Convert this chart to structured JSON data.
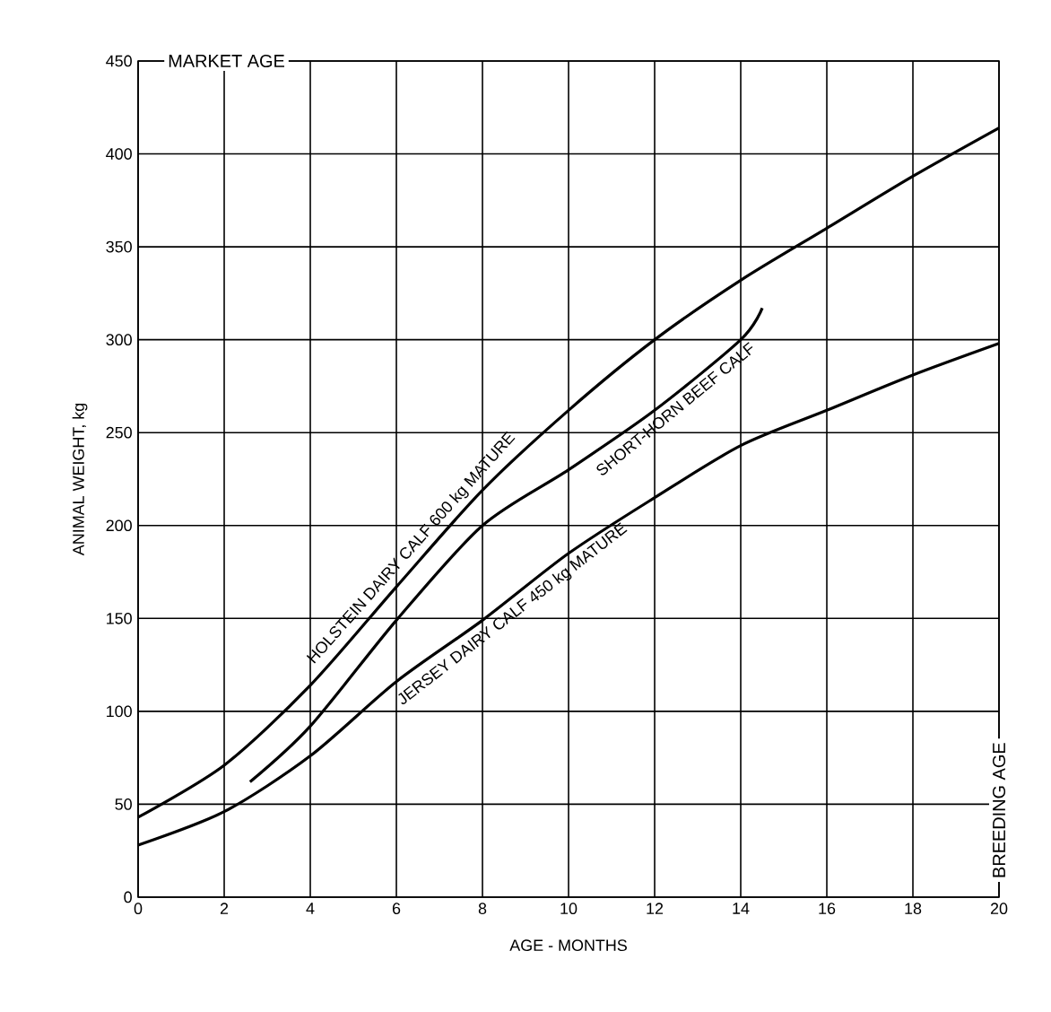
{
  "chart_data": {
    "type": "line",
    "xlabel": "AGE - MONTHS",
    "ylabel": "ANIMAL WEIGHT, kg",
    "xlim": [
      0,
      20
    ],
    "ylim": [
      0,
      450
    ],
    "xticks": [
      0,
      2,
      4,
      6,
      8,
      10,
      12,
      14,
      16,
      18,
      20
    ],
    "yticks": [
      0,
      50,
      100,
      150,
      200,
      250,
      300,
      350,
      400,
      450
    ],
    "grid": true,
    "marker": "none",
    "line_style": "solid",
    "annotations": [
      "MARKET AGE",
      "BREEDING AGE"
    ],
    "series": [
      {
        "name": "HOLSTEIN DAIRY CALF 600 kg MATURE",
        "color": "#000000",
        "x": [
          0,
          2,
          4,
          6,
          8,
          10,
          12,
          14,
          16,
          18,
          20
        ],
        "values": [
          43,
          71,
          114,
          167,
          219,
          262,
          300,
          332,
          360,
          388,
          414
        ]
      },
      {
        "name": "SHORT-HORN BEEF CALF",
        "color": "#000000",
        "x": [
          2.6,
          4,
          6,
          8,
          10,
          12,
          14,
          14.5
        ],
        "values": [
          62,
          92,
          149,
          200,
          230,
          262,
          300,
          317
        ]
      },
      {
        "name": "JERSEY DAIRY CALF 450 kg MATURE",
        "color": "#000000",
        "x": [
          0,
          2,
          4,
          6,
          8,
          10,
          12,
          14,
          16,
          18,
          20
        ],
        "values": [
          28,
          46,
          76,
          116,
          149,
          185,
          215,
          243,
          262,
          281,
          298
        ]
      }
    ]
  }
}
